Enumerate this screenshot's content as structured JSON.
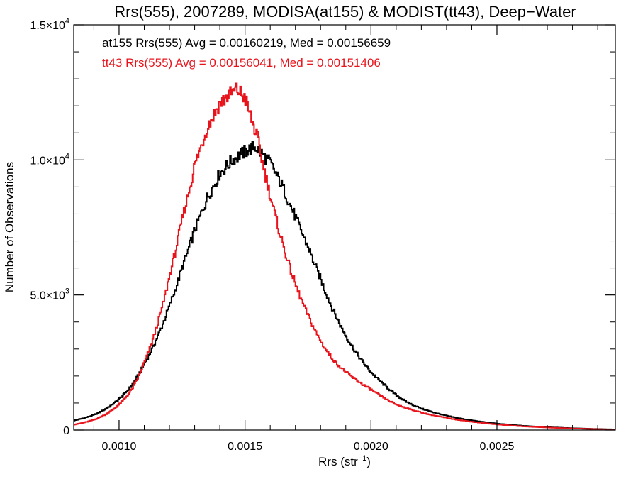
{
  "chart_data": {
    "type": "line",
    "title": "Rrs(555), 2007289, MODISA(at155) & MODIST(tt43), Deep−Water",
    "xlabel": "Rrs (str",
    "xlabel_sup": "−1",
    "xlabel_close": ")",
    "ylabel": "Number of Observations",
    "xlim": [
      0.00082,
      0.00297
    ],
    "ylim": [
      0,
      15000
    ],
    "x_ticks": [
      {
        "value": 0.001,
        "label": "0.0010"
      },
      {
        "value": 0.0015,
        "label": "0.0015"
      },
      {
        "value": 0.002,
        "label": "0.0020"
      },
      {
        "value": 0.0025,
        "label": "0.0025"
      }
    ],
    "y_ticks": [
      {
        "value": 0,
        "label": "0",
        "exp": ""
      },
      {
        "value": 5000,
        "label": "5.0×10",
        "exp": "3"
      },
      {
        "value": 10000,
        "label": "1.0×10",
        "exp": "4"
      },
      {
        "value": 15000,
        "label": "1.5×10",
        "exp": "4"
      }
    ],
    "grid": false,
    "legend": [
      {
        "text": "at155 Rrs(555) Avg = 0.00160219, Med = 0.00156659",
        "color": "#000000"
      },
      {
        "text": "tt43 Rrs(555) Avg = 0.00156041, Med = 0.00151406",
        "color": "#e8141c"
      }
    ],
    "series": [
      {
        "color": "#000000",
        "points": [
          [
            0.00082,
            350
          ],
          [
            0.0009,
            560
          ],
          [
            0.00095,
            800
          ],
          [
            0.001,
            1150
          ],
          [
            0.00105,
            1650
          ],
          [
            0.0011,
            2450
          ],
          [
            0.00115,
            3400
          ],
          [
            0.0012,
            4600
          ],
          [
            0.00125,
            6000
          ],
          [
            0.0013,
            7400
          ],
          [
            0.00135,
            8600
          ],
          [
            0.0014,
            9500
          ],
          [
            0.00145,
            10000
          ],
          [
            0.0015,
            10300
          ],
          [
            0.00154,
            10500
          ],
          [
            0.0016,
            9900
          ],
          [
            0.00165,
            9000
          ],
          [
            0.0017,
            7900
          ],
          [
            0.00175,
            6800
          ],
          [
            0.0018,
            5600
          ],
          [
            0.00185,
            4450
          ],
          [
            0.0019,
            3500
          ],
          [
            0.00195,
            2750
          ],
          [
            0.002,
            2150
          ],
          [
            0.00205,
            1700
          ],
          [
            0.0021,
            1300
          ],
          [
            0.00215,
            1000
          ],
          [
            0.0022,
            800
          ],
          [
            0.0023,
            530
          ],
          [
            0.0024,
            360
          ],
          [
            0.0025,
            240
          ],
          [
            0.0026,
            160
          ],
          [
            0.0027,
            110
          ],
          [
            0.0028,
            70
          ],
          [
            0.0029,
            40
          ],
          [
            0.00297,
            25
          ]
        ]
      },
      {
        "color": "#e8141c",
        "points": [
          [
            0.00082,
            200
          ],
          [
            0.0009,
            380
          ],
          [
            0.00095,
            600
          ],
          [
            0.001,
            950
          ],
          [
            0.00105,
            1500
          ],
          [
            0.0011,
            2500
          ],
          [
            0.00115,
            3850
          ],
          [
            0.0012,
            5700
          ],
          [
            0.00125,
            7800
          ],
          [
            0.0013,
            9800
          ],
          [
            0.00135,
            11200
          ],
          [
            0.0014,
            12100
          ],
          [
            0.00145,
            12500
          ],
          [
            0.00147,
            12600
          ],
          [
            0.0015,
            12300
          ],
          [
            0.00155,
            10800
          ],
          [
            0.0016,
            8700
          ],
          [
            0.00165,
            6900
          ],
          [
            0.0017,
            5400
          ],
          [
            0.00175,
            4250
          ],
          [
            0.0018,
            3300
          ],
          [
            0.00185,
            2600
          ],
          [
            0.0019,
            2150
          ],
          [
            0.00195,
            1800
          ],
          [
            0.002,
            1500
          ],
          [
            0.00205,
            1200
          ],
          [
            0.0021,
            950
          ],
          [
            0.0022,
            650
          ],
          [
            0.0023,
            450
          ],
          [
            0.0024,
            310
          ],
          [
            0.0025,
            210
          ],
          [
            0.0026,
            140
          ],
          [
            0.0027,
            95
          ],
          [
            0.0028,
            60
          ],
          [
            0.0029,
            35
          ],
          [
            0.00297,
            20
          ]
        ]
      }
    ]
  }
}
